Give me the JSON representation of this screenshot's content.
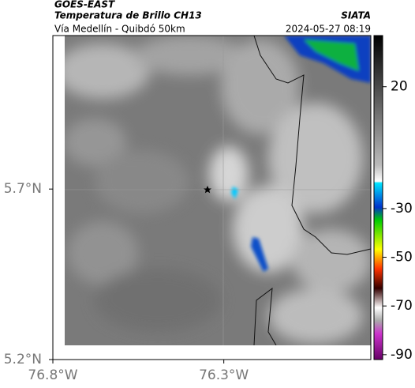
{
  "header": {
    "satellite": "GOES-EAST",
    "title": "Temperatura de Brillo CH13",
    "subtitle": "Vía Medellín - Quibdó 50km",
    "source": "SIATA",
    "timestamp": "2024-05-27 08:19"
  },
  "map": {
    "xlim": [
      -76.8,
      -75.87
    ],
    "ylim": [
      5.2,
      6.15
    ],
    "xticks": [
      {
        "value": -76.8,
        "label": "76.8°W"
      },
      {
        "value": -76.3,
        "label": "76.3°W"
      }
    ],
    "yticks": [
      {
        "value": 5.2,
        "label": "5.2°N"
      },
      {
        "value": 5.7,
        "label": "5.7°N"
      }
    ]
  },
  "colorbar": {
    "lim": [
      -92,
      41
    ],
    "ticks": [
      20,
      -30,
      -50,
      -70,
      -90
    ]
  }
}
